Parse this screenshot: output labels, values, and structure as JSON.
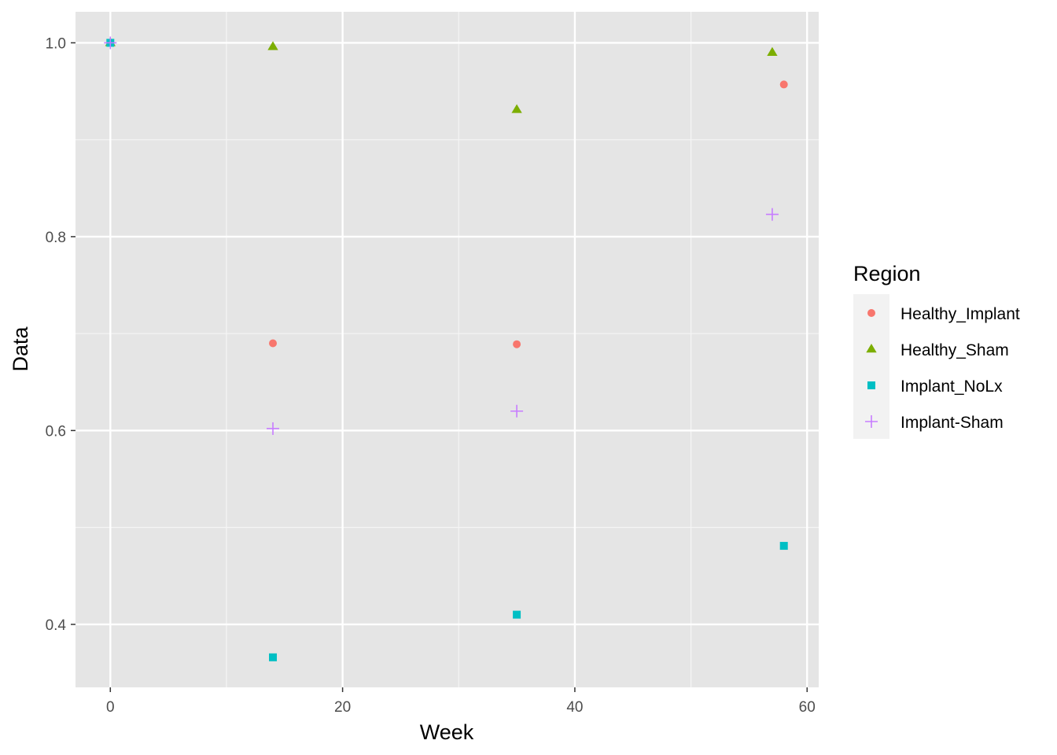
{
  "chart_data": {
    "type": "scatter",
    "xlabel": "Week",
    "ylabel": "Data",
    "xlim": [
      -3,
      61
    ],
    "ylim": [
      0.335,
      1.032
    ],
    "x_ticks": [
      0,
      20,
      40,
      60
    ],
    "y_ticks": [
      0.4,
      0.6,
      0.8,
      1.0
    ],
    "y_tick_labels": [
      "0.4",
      "0.6",
      "0.8",
      "1.0"
    ],
    "grid": true,
    "legend": {
      "title": "Region",
      "placement": "right"
    },
    "series": [
      {
        "name": "Healthy_Implant",
        "shape": "circle",
        "color": "#F8766D",
        "points": [
          [
            0,
            1.0
          ],
          [
            14,
            0.69
          ],
          [
            35,
            0.689
          ],
          [
            58,
            0.957
          ]
        ]
      },
      {
        "name": "Healthy_Sham",
        "shape": "triangle",
        "color": "#7CAE00",
        "points": [
          [
            0,
            1.0
          ],
          [
            14,
            0.996
          ],
          [
            35,
            0.931
          ],
          [
            57,
            0.99
          ]
        ]
      },
      {
        "name": "Implant_NoLx",
        "shape": "square",
        "color": "#00BFC4",
        "points": [
          [
            0,
            1.0
          ],
          [
            14,
            0.366
          ],
          [
            35,
            0.41
          ],
          [
            58,
            0.481
          ]
        ]
      },
      {
        "name": "Implant-Sham",
        "shape": "plus",
        "color": "#C77CFF",
        "points": [
          [
            0,
            1.0
          ],
          [
            14,
            0.602
          ],
          [
            35,
            0.62
          ],
          [
            57,
            0.823
          ]
        ]
      }
    ]
  }
}
